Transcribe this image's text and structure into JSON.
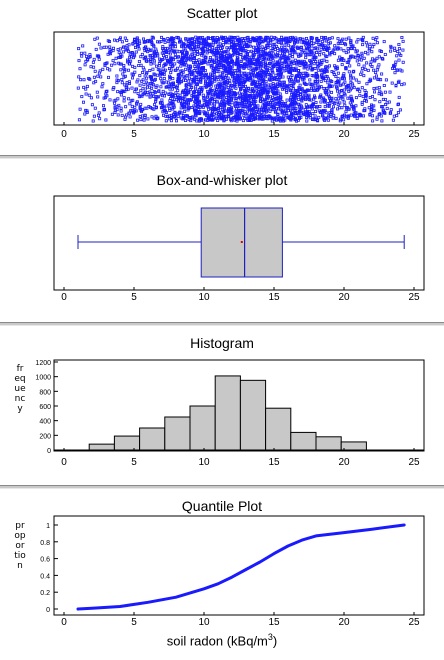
{
  "scatter": {
    "title": "Scatter plot",
    "xticks": [
      "0",
      "5",
      "10",
      "15",
      "20",
      "25"
    ],
    "xlim": [
      0,
      25
    ]
  },
  "box": {
    "title": "Box-and-whisker plot",
    "xticks": [
      "0",
      "5",
      "10",
      "15",
      "20",
      "25"
    ],
    "xlim": [
      0,
      25
    ]
  },
  "histogram": {
    "title": "Histogram",
    "ylabel": "frequency",
    "yticks": [
      "0",
      "200",
      "400",
      "600",
      "800",
      "1000",
      "1200"
    ],
    "xticks": [
      "0",
      "5",
      "10",
      "15",
      "20",
      "25"
    ],
    "xlim": [
      0,
      25
    ],
    "ylim": [
      0,
      1200
    ]
  },
  "quantile": {
    "title": "Quantile Plot",
    "ylabel": "proportion",
    "yticks": [
      "0",
      "0.2",
      "0.4",
      "0.6",
      "0.8",
      "1"
    ],
    "xticks": [
      "0",
      "5",
      "10",
      "15",
      "20",
      "25"
    ],
    "xlim": [
      0,
      25
    ],
    "ylim": [
      0,
      1
    ],
    "xlabel_main": "soil radon (kBq/m",
    "xlabel_sup": "3",
    "xlabel_end": ")"
  },
  "colors": {
    "points": "#1a1aff",
    "box_line": "#2020c0",
    "mean_marker": "#e00000",
    "bar_fill": "#c8c8c8",
    "quantile_line": "#1a1aff"
  },
  "chart_data": [
    {
      "type": "scatter",
      "title": "Scatter plot",
      "xlim": [
        0,
        25
      ],
      "x_range_of_points": [
        1.0,
        24.3
      ],
      "note_points": "dense cloud of roughly 4300 points, densest near 12-14, y is random jitter"
    },
    {
      "type": "box",
      "title": "Box-and-whisker plot",
      "xlim": [
        0,
        25
      ],
      "min": 1.0,
      "q1": 9.8,
      "median": 12.9,
      "mean": 12.7,
      "q3": 15.6,
      "max": 24.3
    },
    {
      "type": "bar",
      "title": "Histogram",
      "ylabel": "frequency",
      "xlim": [
        0,
        25
      ],
      "ylim": [
        0,
        1200
      ],
      "bin_edges": [
        0,
        1.8,
        3.6,
        5.4,
        7.2,
        9.0,
        10.8,
        12.6,
        14.4,
        16.2,
        18.0,
        19.8,
        21.6
      ],
      "values": [
        0,
        80,
        190,
        300,
        450,
        600,
        1010,
        950,
        570,
        240,
        180,
        110
      ]
    },
    {
      "type": "line",
      "title": "Quantile Plot",
      "ylabel": "proportion",
      "xlabel": "soil radon (kBq/m3)",
      "xlim": [
        0,
        25
      ],
      "ylim": [
        0,
        1
      ],
      "x": [
        1,
        2,
        4,
        6,
        8,
        10,
        11,
        12,
        13,
        14,
        15,
        16,
        17,
        18,
        20,
        22,
        24.3
      ],
      "y": [
        0,
        0.01,
        0.03,
        0.08,
        0.14,
        0.24,
        0.3,
        0.38,
        0.47,
        0.56,
        0.66,
        0.75,
        0.82,
        0.87,
        0.91,
        0.95,
        1.0
      ]
    }
  ]
}
